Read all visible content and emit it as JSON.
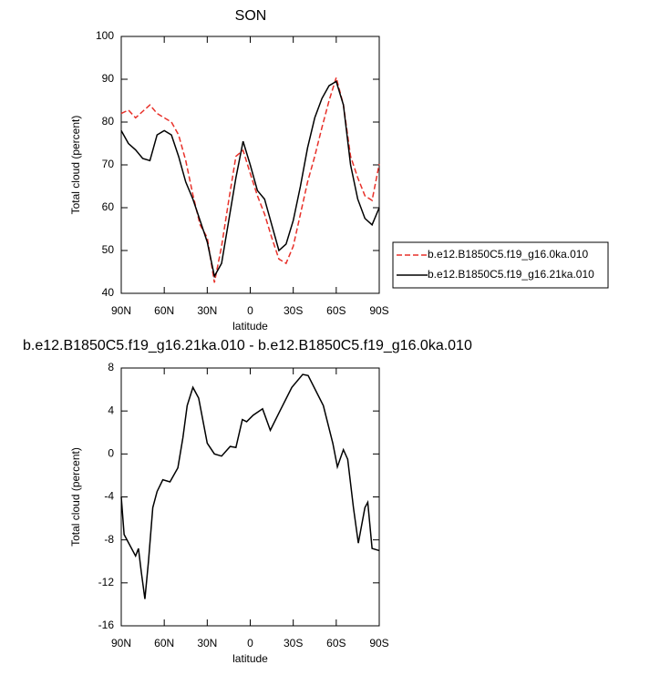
{
  "chart_data": [
    {
      "type": "line",
      "title": "SON",
      "x_label": "latitude",
      "y_label": "Total cloud (percent)",
      "x": [
        90,
        85,
        80,
        75,
        70,
        65,
        60,
        55,
        50,
        45,
        40,
        35,
        30,
        25,
        20,
        15,
        10,
        5,
        0,
        -5,
        -10,
        -15,
        -20,
        -25,
        -30,
        -35,
        -40,
        -45,
        -50,
        -55,
        -60,
        -65,
        -70,
        -75,
        -80,
        -85,
        -90
      ],
      "series": [
        {
          "name": "b.e12.B1850C5.f19_g16.0ka.010",
          "color": "#e8312a",
          "line_style": "dashed",
          "values": [
            82,
            82.8,
            81,
            82.5,
            84,
            82,
            81,
            80,
            77,
            71,
            63,
            56,
            53,
            42.5,
            51,
            61.7,
            72,
            73.4,
            68,
            62.8,
            58.5,
            53,
            48,
            47,
            51,
            58.5,
            66,
            72,
            78.7,
            85,
            90.4,
            84,
            72,
            67,
            62.8,
            61.7,
            70.2
          ]
        },
        {
          "name": "b.e12.B1850C5.f19_g16.21ka.010",
          "color": "#000000",
          "line_style": "solid",
          "values": [
            78,
            75,
            73.5,
            71.5,
            71,
            77,
            78,
            77,
            72,
            66,
            62,
            57,
            52,
            44,
            47,
            57,
            67,
            75.5,
            70,
            64,
            62,
            56,
            50,
            51.5,
            57,
            65,
            74,
            81,
            85.5,
            88.5,
            89.5,
            84,
            70,
            62,
            57.5,
            56,
            60
          ]
        }
      ],
      "xlim": [
        90,
        -90
      ],
      "xticks": [
        {
          "value": 90,
          "label": "90N"
        },
        {
          "value": 60,
          "label": "60N"
        },
        {
          "value": 30,
          "label": "30N"
        },
        0,
        {
          "value": -30,
          "label": "30S"
        },
        {
          "value": -60,
          "label": "60S"
        },
        {
          "value": -90,
          "label": "90S"
        }
      ],
      "ylim": [
        40,
        100
      ],
      "yticks": [
        40,
        50,
        60,
        70,
        80,
        90,
        100
      ],
      "legend": "right"
    },
    {
      "type": "line",
      "title": "b.e12.B1850C5.f19_g16.21ka.010 - b.e12.B1850C5.f19_g16.0ka.010",
      "x_label": "latitude",
      "y_label": "Total cloud (percent)",
      "x": [
        90,
        88,
        80,
        78,
        76,
        73.5,
        71,
        68,
        65,
        61,
        56,
        50.5,
        47,
        44,
        40,
        36,
        30,
        25,
        20,
        14,
        10,
        5.5,
        2.5,
        -2,
        -8.6,
        -14,
        -20.7,
        -29,
        -36.6,
        -40.4,
        -51,
        -57.6,
        -60.8,
        -65,
        -68,
        -72,
        -75.4,
        -80,
        -82,
        -85,
        -90
      ],
      "series": [
        {
          "color": "#000000",
          "line_style": "solid",
          "values": [
            -4,
            -7.5,
            -9.5,
            -8.8,
            -11,
            -13.5,
            -10,
            -5,
            -3.5,
            -2.4,
            -2.6,
            -1.3,
            1.5,
            4.5,
            6.2,
            5.2,
            1,
            0,
            -0.2,
            0.7,
            0.6,
            3.2,
            3,
            3.6,
            4.2,
            2.2,
            4,
            6.2,
            7.4,
            7.3,
            4.5,
            1,
            -1.2,
            0.4,
            -0.5,
            -5,
            -8.3,
            -5,
            -4.5,
            -8.8,
            -9
          ]
        }
      ],
      "xlim": [
        90,
        -90
      ],
      "xticks": [
        {
          "value": 90,
          "label": "90N"
        },
        {
          "value": 60,
          "label": "60N"
        },
        {
          "value": 30,
          "label": "30N"
        },
        0,
        {
          "value": -30,
          "label": "30S"
        },
        {
          "value": -60,
          "label": "60S"
        },
        {
          "value": -90,
          "label": "90S"
        }
      ],
      "ylim": [
        -16,
        8
      ],
      "yticks": [
        -16,
        -12,
        -8,
        -4,
        0,
        4,
        8
      ]
    }
  ]
}
